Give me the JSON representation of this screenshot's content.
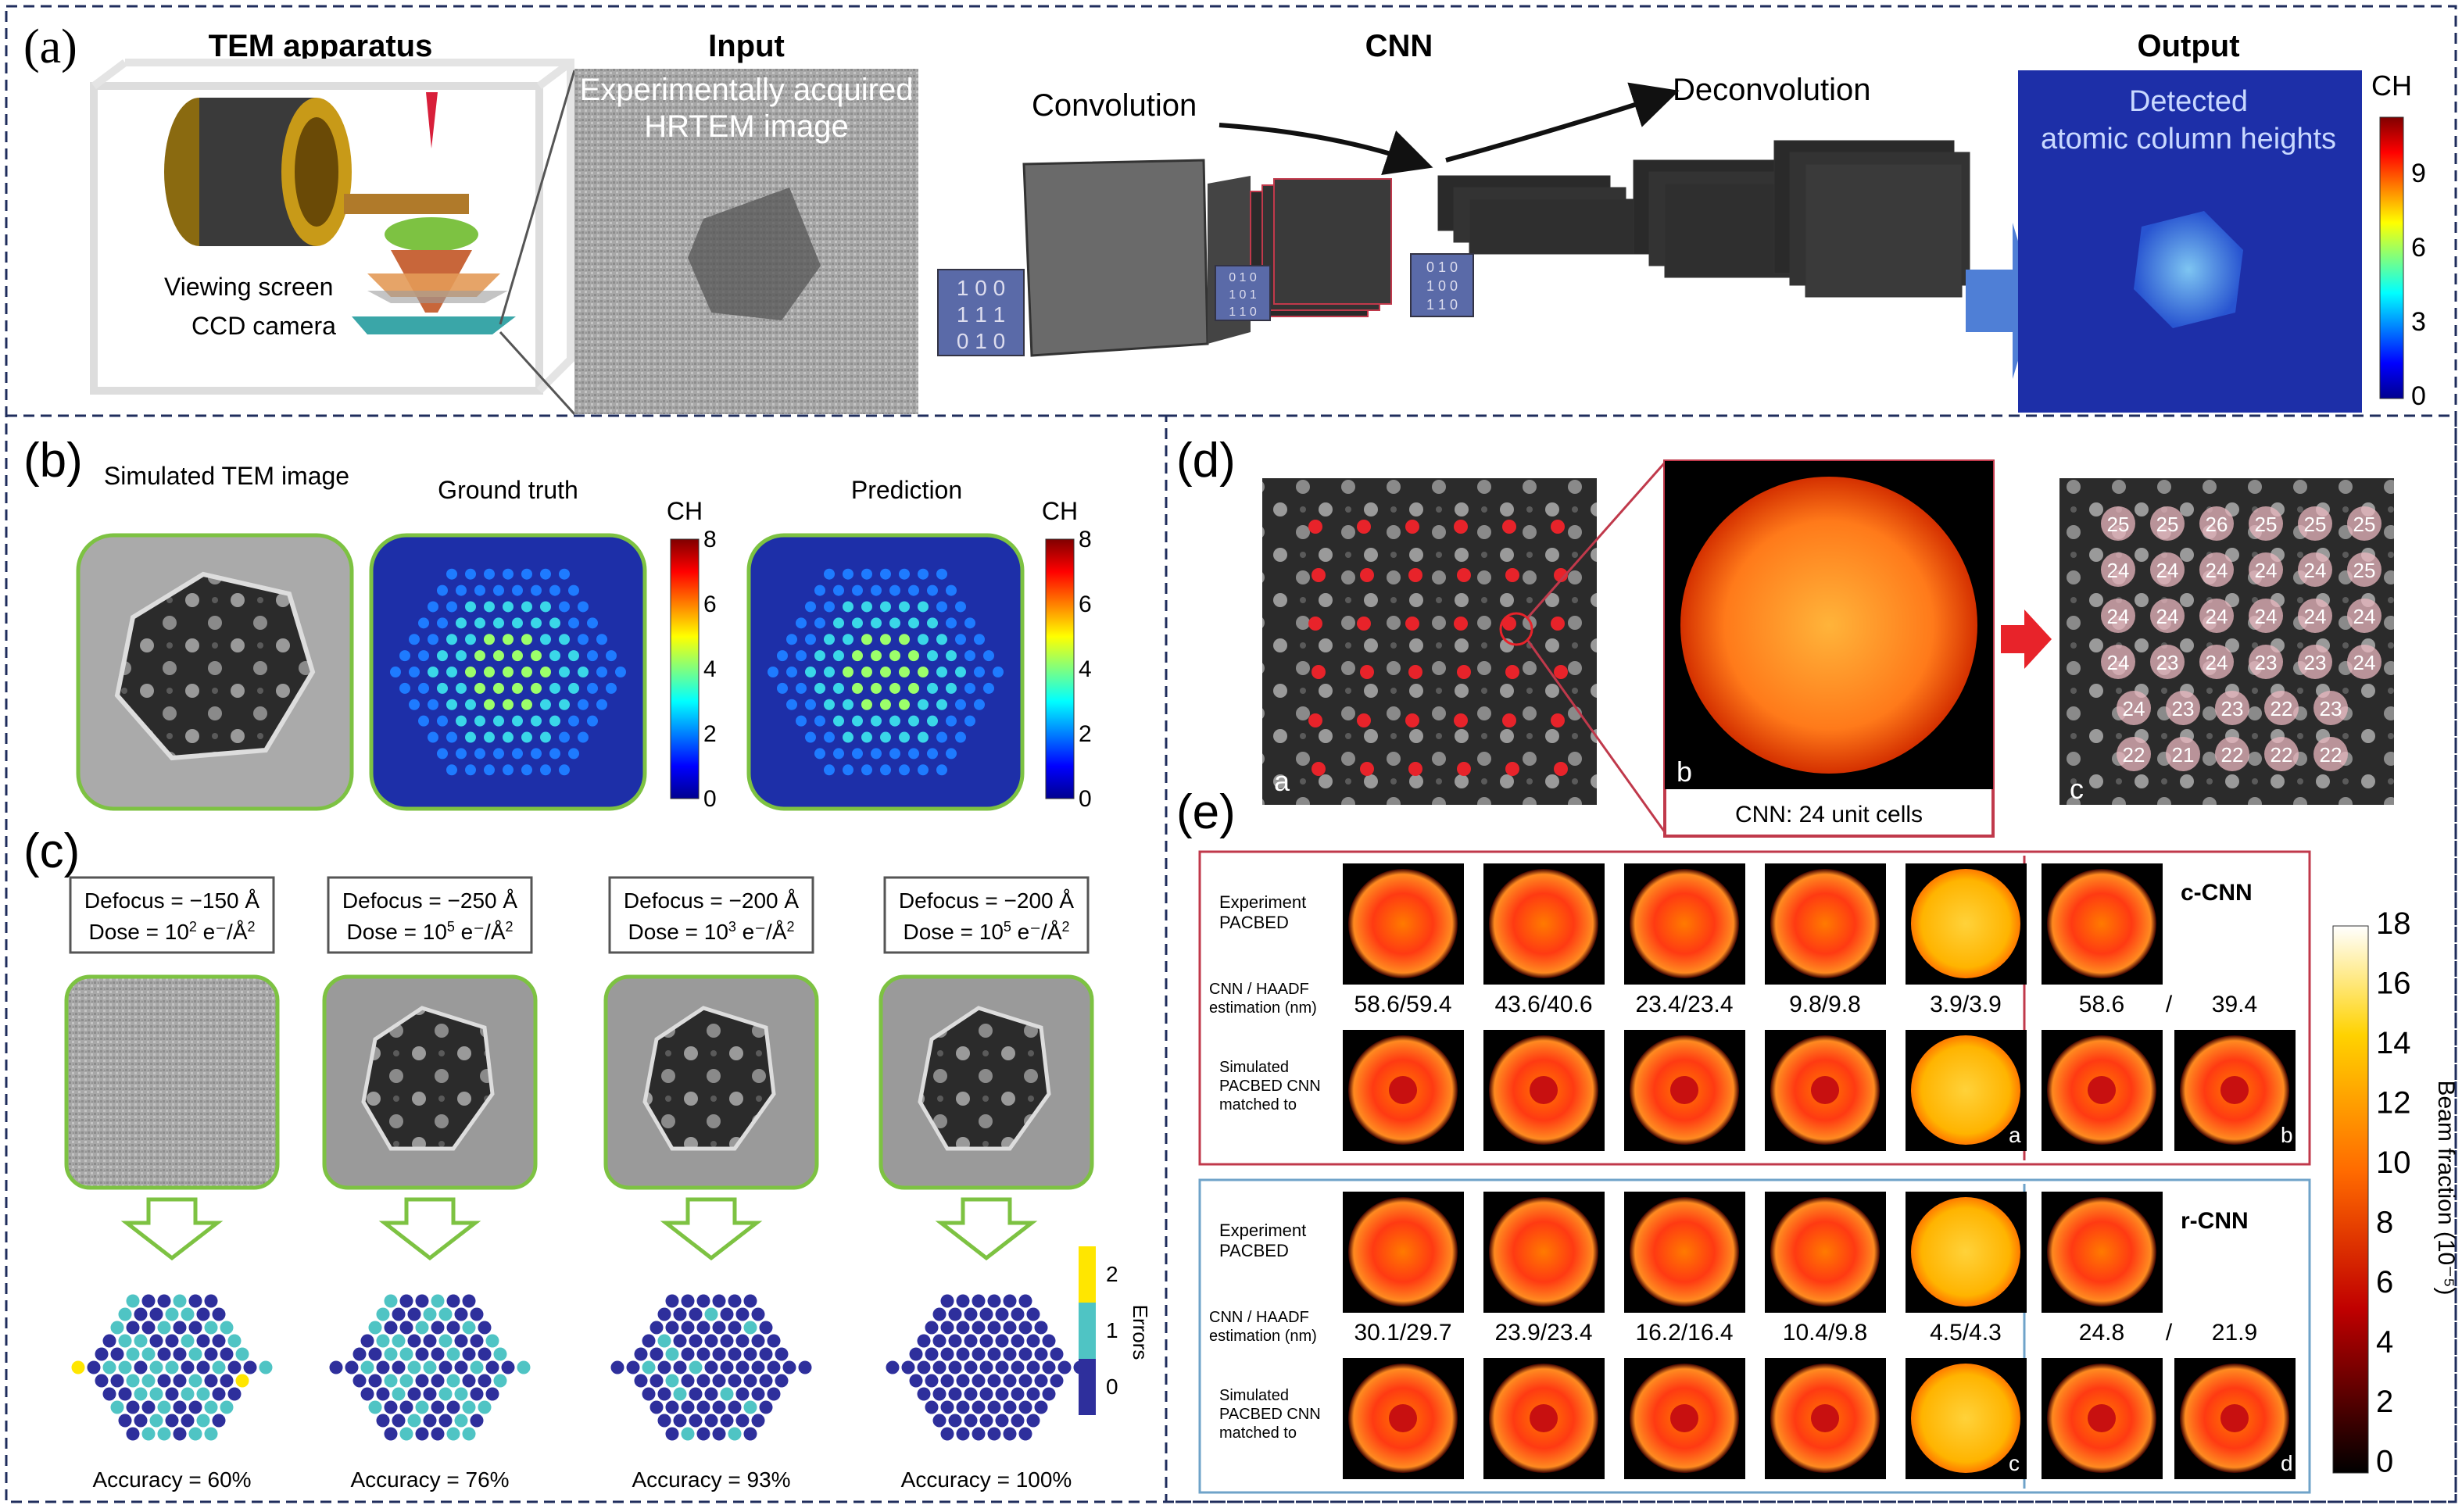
{
  "panel_a": {
    "label": "(a)",
    "tem_title": "TEM apparatus",
    "viewing_screen": "Viewing screen",
    "ccd_camera": "CCD camera",
    "input_title": "Input",
    "input_caption_1": "Experimentally acquired",
    "input_caption_2": "HRTEM image",
    "cnn_title": "CNN",
    "convolution": "Convolution",
    "deconvolution": "Deconvolution",
    "output_title": "Output",
    "output_caption_1": "Detected",
    "output_caption_2": "atomic column heights",
    "colorbar_title": "CH",
    "colorbar_ticks": [
      "9",
      "6",
      "3",
      "0"
    ],
    "kernel_a": [
      "1 0 0",
      "1 1 1",
      "0 1 0"
    ],
    "kernel_b": [
      "0 1 0",
      "1 0 1",
      "1 1 0"
    ],
    "kernel_c": [
      "0 1 0",
      "1 0 0",
      "1 1 0"
    ]
  },
  "panel_b": {
    "label": "(b)",
    "titles": [
      "Simulated TEM image",
      "Ground truth",
      "Prediction"
    ],
    "colorbar_title": "CH",
    "colorbar_ticks": [
      "8",
      "6",
      "4",
      "2",
      "0"
    ]
  },
  "panel_c": {
    "label": "(c)",
    "conditions": [
      {
        "defocus": "Defocus = −150 Å",
        "dose_base": "Dose = 10",
        "dose_exp": "2",
        "dose_unit": " e⁻/Å",
        "dose_unit_exp": "2",
        "accuracy": "Accuracy = 60%"
      },
      {
        "defocus": "Defocus = −250 Å",
        "dose_base": "Dose = 10",
        "dose_exp": "5",
        "dose_unit": " e⁻/Å",
        "dose_unit_exp": "2",
        "accuracy": "Accuracy = 76%"
      },
      {
        "defocus": "Defocus = −200 Å",
        "dose_base": "Dose = 10",
        "dose_exp": "3",
        "dose_unit": " e⁻/Å",
        "dose_unit_exp": "2",
        "accuracy": "Accuracy = 93%"
      },
      {
        "defocus": "Defocus = −200 Å",
        "dose_base": "Dose = 10",
        "dose_exp": "5",
        "dose_unit": " e⁻/Å",
        "dose_unit_exp": "2",
        "accuracy": "Accuracy = 100%"
      }
    ],
    "errors_title": "Errors",
    "errors_ticks": [
      "2",
      "1",
      "0"
    ]
  },
  "panel_d": {
    "label": "(d)",
    "sub_a": "a",
    "sub_b": "b",
    "sub_c": "c",
    "cnn_caption": "CNN: 24 unit cells",
    "unit_cell_counts": [
      [
        "25",
        "25",
        "26",
        "25",
        "25",
        "25"
      ],
      [
        "24",
        "24",
        "24",
        "24",
        "24",
        "25"
      ],
      [
        "24",
        "24",
        "24",
        "24",
        "24",
        "24"
      ],
      [
        "24",
        "23",
        "24",
        "23",
        "23",
        "24"
      ],
      [
        "24",
        "23",
        "23",
        "22",
        "23"
      ],
      [
        "22",
        "21",
        "22",
        "22",
        "22"
      ]
    ]
  },
  "panel_e": {
    "label": "(e)",
    "c_cnn": {
      "name": "c-CNN",
      "row1_label_1": "Experiment",
      "row1_label_2": "PACBED",
      "est_label_1": "CNN / HAADF",
      "est_label_2": "estimation (nm)",
      "estimates": [
        "58.6/59.4",
        "43.6/40.6",
        "23.4/23.4",
        "9.8/9.8",
        "3.9/3.9"
      ],
      "right_a": "58.6",
      "slash": "/",
      "right_b": "39.4",
      "row2_label_1": "Simulated",
      "row2_label_2": "PACBED CNN",
      "row2_label_3": "matched to",
      "tag_a": "a",
      "tag_b": "b"
    },
    "r_cnn": {
      "name": "r-CNN",
      "row1_label_1": "Experiment",
      "row1_label_2": "PACBED",
      "est_label_1": "CNN / HAADF",
      "est_label_2": "estimation (nm)",
      "estimates": [
        "30.1/29.7",
        "23.9/23.4",
        "16.2/16.4",
        "10.4/9.8",
        "4.5/4.3"
      ],
      "right_a": "24.8",
      "slash": "/",
      "right_b": "21.9",
      "row2_label_1": "Simulated",
      "row2_label_2": "PACBED CNN",
      "row2_label_3": "matched to",
      "tag_c": "c",
      "tag_d": "d"
    },
    "colorbar_ticks": [
      "18",
      "16",
      "14",
      "12",
      "10",
      "8",
      "6",
      "4",
      "2",
      "0"
    ],
    "colorbar_label": "Beam fraction (10⁻⁵)"
  },
  "colors": {
    "frame_dash": "#1f2d5c",
    "red_frame": "#c0394b",
    "blue_frame": "#6fa3c9",
    "green_frame": "#7dc242",
    "arrow_red": "#e8232a",
    "arrow_blue": "#4f7fd6",
    "atom_blue": "#2e2f9c",
    "atom_cyan": "#4fc4c4",
    "atom_yellow": "#ffe600"
  }
}
